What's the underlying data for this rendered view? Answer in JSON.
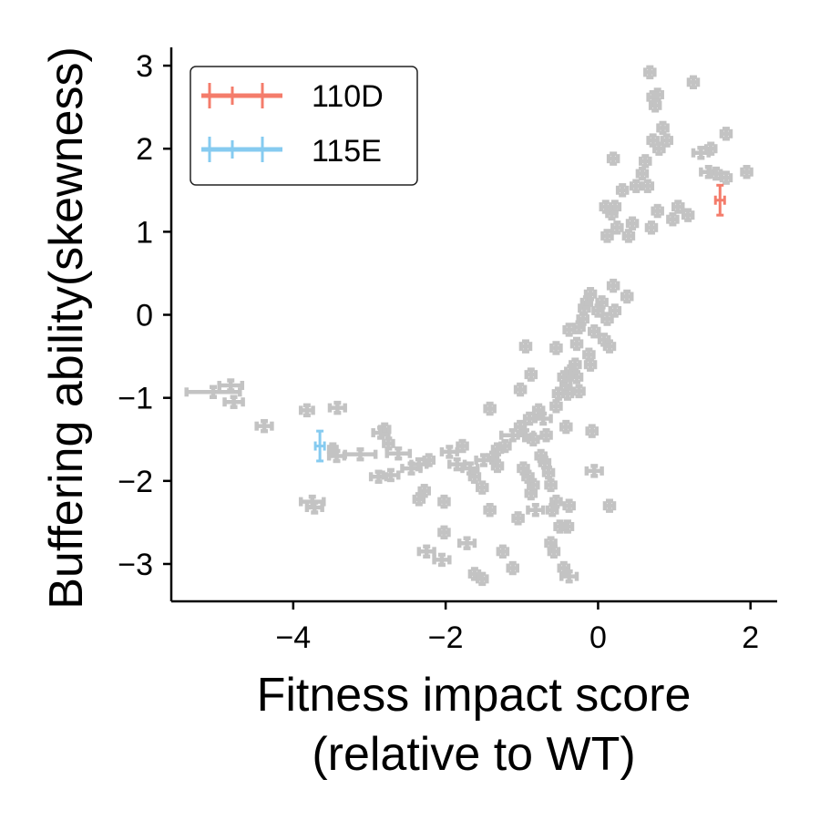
{
  "chart_data": {
    "type": "scatter",
    "title": "",
    "xlabel_lines": [
      "Fitness impact score",
      "(relative to WT)"
    ],
    "ylabel": "Buffering ability(skewness)",
    "xlim": [
      -5.6,
      2.35
    ],
    "ylim": [
      -3.45,
      3.22
    ],
    "xticks": [
      -4,
      -2,
      0,
      2
    ],
    "yticks": [
      -3,
      -2,
      -1,
      0,
      1,
      2,
      3
    ],
    "xtick_labels": [
      "−4",
      "−2",
      "0",
      "2"
    ],
    "ytick_labels": [
      "−3",
      "−2",
      "−1",
      "0",
      "1",
      "2",
      "3"
    ],
    "legend_position": "top-left",
    "colors": {
      "background": "#c3c3c3",
      "110D": "#f47c6b",
      "115E": "#86cbf0"
    },
    "series": [
      {
        "name": "background",
        "legend": false,
        "color": "#c3c3c3",
        "points": [
          [
            -5.05,
            -0.93,
            0.35,
            0.06
          ],
          [
            -4.82,
            -0.85,
            0.15,
            0.06
          ],
          [
            -4.78,
            -1.05,
            0.12,
            0.06
          ],
          [
            -4.38,
            -1.34,
            0.1,
            0.06
          ],
          [
            -3.82,
            -1.15,
            0.08,
            0.06
          ],
          [
            -3.42,
            -1.12,
            0.1,
            0.06
          ],
          [
            -3.75,
            -2.25,
            0.15,
            0.06
          ],
          [
            -3.72,
            -2.32,
            0.1,
            0.06
          ],
          [
            -3.43,
            -1.7,
            0.1,
            0.06
          ],
          [
            -3.48,
            -1.62,
            0.05,
            0.06
          ],
          [
            -3.12,
            -1.68,
            0.2,
            0.06
          ],
          [
            -2.85,
            -1.42,
            0.1,
            0.06
          ],
          [
            -2.8,
            -1.38,
            0.06,
            0.06
          ],
          [
            -2.75,
            -1.55,
            0.06,
            0.06
          ],
          [
            -2.72,
            -1.93,
            0.1,
            0.06
          ],
          [
            -2.88,
            -1.95,
            0.1,
            0.06
          ],
          [
            -2.62,
            -1.67,
            0.15,
            0.06
          ],
          [
            -2.45,
            -1.85,
            0.12,
            0.06
          ],
          [
            -2.35,
            -1.8,
            0.1,
            0.06
          ],
          [
            -2.22,
            -1.75,
            0.06,
            0.06
          ],
          [
            -2.28,
            -2.12,
            0.06,
            0.06
          ],
          [
            -2.35,
            -2.22,
            0.06,
            0.06
          ],
          [
            -2.02,
            -2.25,
            0.06,
            0.06
          ],
          [
            -2.25,
            -2.85,
            0.1,
            0.06
          ],
          [
            -2.05,
            -2.95,
            0.1,
            0.06
          ],
          [
            -2.02,
            -2.62,
            0.06,
            0.06
          ],
          [
            -1.95,
            -1.65,
            0.1,
            0.06
          ],
          [
            -1.85,
            -1.8,
            0.1,
            0.06
          ],
          [
            -1.78,
            -1.58,
            0.06,
            0.06
          ],
          [
            -1.68,
            -1.85,
            0.1,
            0.06
          ],
          [
            -1.62,
            -1.95,
            0.06,
            0.06
          ],
          [
            -1.5,
            -1.75,
            0.1,
            0.06
          ],
          [
            -1.38,
            -1.72,
            0.06,
            0.06
          ],
          [
            -1.32,
            -1.82,
            0.06,
            0.06
          ],
          [
            -1.52,
            -2.08,
            0.06,
            0.06
          ],
          [
            -1.62,
            -3.12,
            0.06,
            0.06
          ],
          [
            -1.52,
            -3.18,
            0.06,
            0.06
          ],
          [
            -1.72,
            -2.75,
            0.1,
            0.06
          ],
          [
            -1.42,
            -2.35,
            0.06,
            0.06
          ],
          [
            -1.42,
            -1.13,
            0.06,
            0.06
          ],
          [
            -1.32,
            -1.62,
            0.06,
            0.06
          ],
          [
            -1.22,
            -1.58,
            0.06,
            0.06
          ],
          [
            -1.25,
            -2.85,
            0.06,
            0.06
          ],
          [
            -1.12,
            -1.45,
            0.15,
            0.06
          ],
          [
            -1.02,
            -1.35,
            0.06,
            0.06
          ],
          [
            -0.95,
            -1.45,
            0.1,
            0.06
          ],
          [
            -0.9,
            -1.25,
            0.06,
            0.06
          ],
          [
            -0.85,
            -1.5,
            0.06,
            0.06
          ],
          [
            -0.98,
            -1.85,
            0.06,
            0.06
          ],
          [
            -0.92,
            -1.95,
            0.06,
            0.06
          ],
          [
            -0.85,
            -2.05,
            0.06,
            0.06
          ],
          [
            -0.88,
            -2.15,
            0.06,
            0.06
          ],
          [
            -0.82,
            -2.35,
            0.1,
            0.06
          ],
          [
            -1.05,
            -2.45,
            0.06,
            0.06
          ],
          [
            -1.12,
            -3.05,
            0.06,
            0.06
          ],
          [
            -1.02,
            -0.9,
            0.06,
            0.06
          ],
          [
            -0.95,
            -0.38,
            0.06,
            0.06
          ],
          [
            -0.88,
            -0.72,
            0.06,
            0.06
          ],
          [
            -0.78,
            -1.15,
            0.06,
            0.06
          ],
          [
            -0.72,
            -1.25,
            0.1,
            0.06
          ],
          [
            -0.68,
            -1.45,
            0.06,
            0.06
          ],
          [
            -0.75,
            -1.7,
            0.06,
            0.06
          ],
          [
            -0.7,
            -1.78,
            0.06,
            0.06
          ],
          [
            -0.65,
            -1.9,
            0.06,
            0.06
          ],
          [
            -0.62,
            -2.05,
            0.06,
            0.06
          ],
          [
            -0.6,
            -2.35,
            0.06,
            0.06
          ],
          [
            -0.55,
            -2.25,
            0.06,
            0.06
          ],
          [
            -0.5,
            -2.55,
            0.06,
            0.06
          ],
          [
            -0.62,
            -2.75,
            0.06,
            0.06
          ],
          [
            -0.58,
            -2.85,
            0.06,
            0.06
          ],
          [
            -0.45,
            -3.05,
            0.06,
            0.06
          ],
          [
            -0.4,
            -2.55,
            0.06,
            0.06
          ],
          [
            -0.38,
            -2.3,
            0.06,
            0.06
          ],
          [
            -0.42,
            -1.35,
            0.06,
            0.06
          ],
          [
            -0.55,
            -1.1,
            0.06,
            0.06
          ],
          [
            -0.52,
            -0.95,
            0.06,
            0.06
          ],
          [
            -0.55,
            -0.4,
            0.06,
            0.06
          ],
          [
            -0.45,
            -0.75,
            0.06,
            0.06
          ],
          [
            -0.42,
            -0.85,
            0.06,
            0.06
          ],
          [
            -0.4,
            -0.95,
            0.06,
            0.06
          ],
          [
            -0.36,
            -0.68,
            0.06,
            0.06
          ],
          [
            -0.3,
            -0.6,
            0.06,
            0.06
          ],
          [
            -0.28,
            -0.35,
            0.06,
            0.06
          ],
          [
            -0.25,
            -0.15,
            0.06,
            0.06
          ],
          [
            -0.38,
            -3.15,
            0.1,
            0.06
          ],
          [
            -0.38,
            -0.18,
            0.06,
            0.06
          ],
          [
            -0.28,
            -0.75,
            0.06,
            0.06
          ],
          [
            -0.25,
            -0.92,
            0.06,
            0.06
          ],
          [
            -0.2,
            -0.05,
            0.06,
            0.06
          ],
          [
            -0.18,
            0.08,
            0.06,
            0.06
          ],
          [
            -0.15,
            0.15,
            0.06,
            0.06
          ],
          [
            -0.1,
            0.25,
            0.06,
            0.06
          ],
          [
            -0.12,
            -0.48,
            0.06,
            0.06
          ],
          [
            -0.1,
            -0.6,
            0.06,
            0.06
          ],
          [
            -0.08,
            -1.4,
            0.06,
            0.06
          ],
          [
            -0.05,
            -1.88,
            0.1,
            0.06
          ],
          [
            -0.05,
            -0.2,
            0.06,
            0.06
          ],
          [
            0.0,
            0.05,
            0.06,
            0.06
          ],
          [
            0.05,
            0.15,
            0.06,
            0.06
          ],
          [
            0.08,
            -0.3,
            0.06,
            0.06
          ],
          [
            0.12,
            -0.05,
            0.06,
            0.06
          ],
          [
            0.15,
            -0.38,
            0.06,
            0.06
          ],
          [
            0.2,
            0.35,
            0.06,
            0.06
          ],
          [
            0.22,
            0.05,
            0.06,
            0.06
          ],
          [
            0.15,
            -2.3,
            0.06,
            0.06
          ],
          [
            0.1,
            1.3,
            0.06,
            0.06
          ],
          [
            0.12,
            0.95,
            0.06,
            0.06
          ],
          [
            0.18,
            1.22,
            0.06,
            0.06
          ],
          [
            0.22,
            1.3,
            0.06,
            0.06
          ],
          [
            0.25,
            1.05,
            0.06,
            0.06
          ],
          [
            0.32,
            1.5,
            0.06,
            0.06
          ],
          [
            0.38,
            0.22,
            0.06,
            0.06
          ],
          [
            0.4,
            0.95,
            0.06,
            0.06
          ],
          [
            0.45,
            1.1,
            0.06,
            0.06
          ],
          [
            0.5,
            1.55,
            0.06,
            0.06
          ],
          [
            0.58,
            1.7,
            0.06,
            0.06
          ],
          [
            0.62,
            1.85,
            0.06,
            0.06
          ],
          [
            0.7,
            1.05,
            0.06,
            0.06
          ],
          [
            0.72,
            2.1,
            0.06,
            0.06
          ],
          [
            0.78,
            1.25,
            0.06,
            0.06
          ],
          [
            0.85,
            2.25,
            0.06,
            0.06
          ],
          [
            0.9,
            2.1,
            0.06,
            0.06
          ],
          [
            0.98,
            1.15,
            0.06,
            0.06
          ],
          [
            1.05,
            1.3,
            0.06,
            0.06
          ],
          [
            0.2,
            1.88,
            0.06,
            0.06
          ],
          [
            0.68,
            2.92,
            0.06,
            0.06
          ],
          [
            0.72,
            2.62,
            0.06,
            0.06
          ],
          [
            0.78,
            2.65,
            0.06,
            0.06
          ],
          [
            0.75,
            2.52,
            0.06,
            0.06
          ],
          [
            0.8,
            2.0,
            0.06,
            0.06
          ],
          [
            0.65,
            1.55,
            0.06,
            0.06
          ],
          [
            1.18,
            1.2,
            0.06,
            0.06
          ],
          [
            1.25,
            2.8,
            0.06,
            0.06
          ],
          [
            1.35,
            1.95,
            0.1,
            0.06
          ],
          [
            1.48,
            2.0,
            0.06,
            0.06
          ],
          [
            1.45,
            1.72,
            0.1,
            0.06
          ],
          [
            1.55,
            1.7,
            0.06,
            0.06
          ],
          [
            1.68,
            2.18,
            0.06,
            0.06
          ],
          [
            1.68,
            1.65,
            0.06,
            0.06
          ],
          [
            1.95,
            1.72,
            0.06,
            0.06
          ]
        ]
      },
      {
        "name": "110D",
        "legend": true,
        "color": "#f47c6b",
        "points": [
          [
            1.6,
            1.38,
            0.06,
            0.18
          ]
        ]
      },
      {
        "name": "115E",
        "legend": true,
        "color": "#86cbf0",
        "points": [
          [
            -3.65,
            -1.58,
            0.06,
            0.18
          ]
        ]
      }
    ]
  }
}
